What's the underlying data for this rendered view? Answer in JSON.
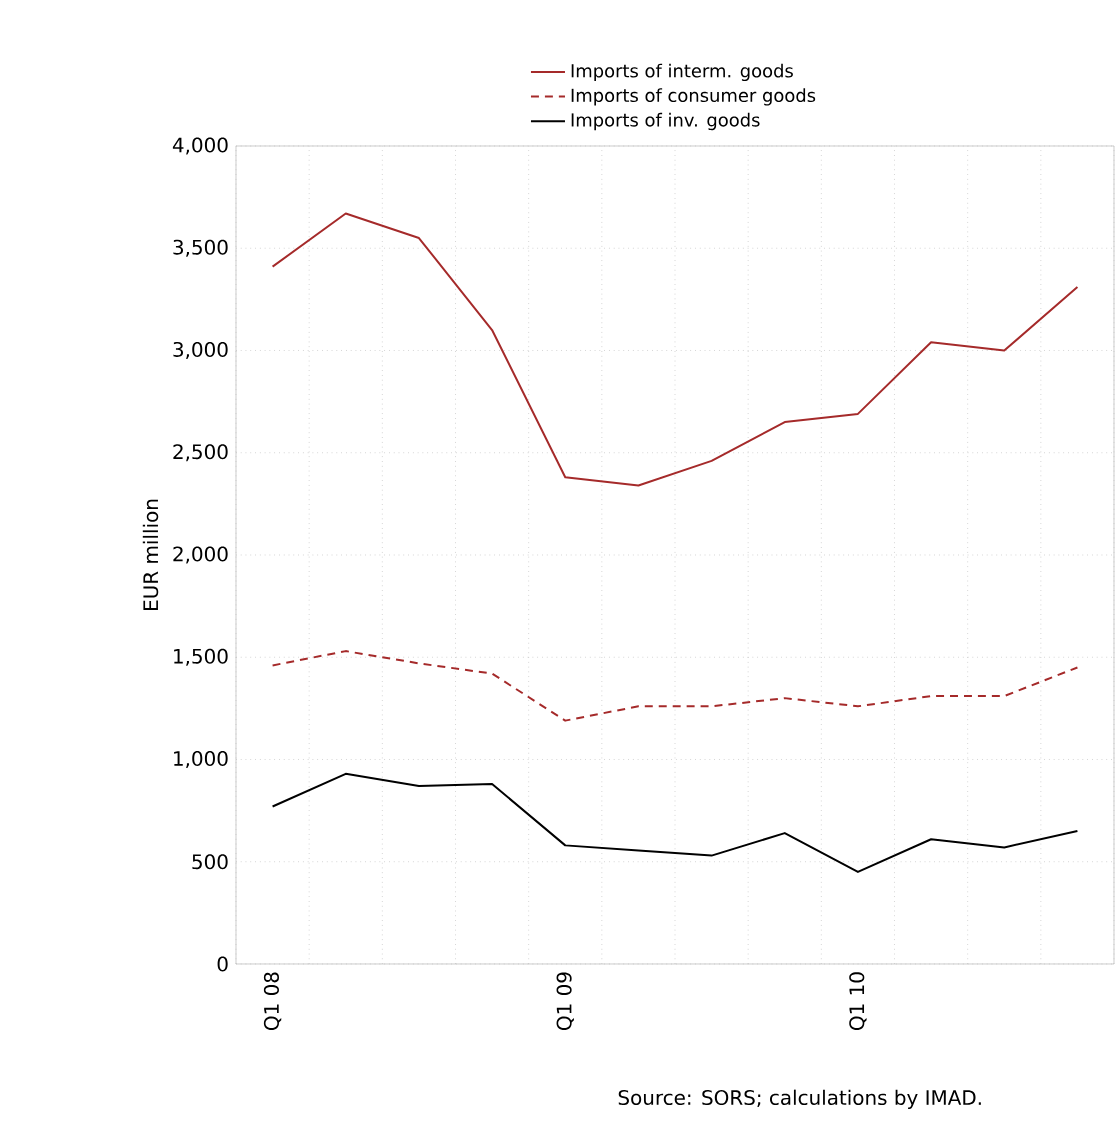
{
  "chart_data": {
    "type": "line",
    "categories": [
      "Q1 08",
      null,
      null,
      null,
      "Q1 09",
      null,
      null,
      null,
      "Q1 10",
      null,
      null,
      null
    ],
    "series": [
      {
        "name": "Imports of interm. goods",
        "color": "#a52a2a",
        "line_style": "solid",
        "values": [
          3410,
          3670,
          3550,
          3100,
          2380,
          2340,
          2460,
          2650,
          2690,
          3040,
          3000,
          3310
        ]
      },
      {
        "name": "Imports of consumer goods",
        "color": "#a52a2a",
        "line_style": "dashed",
        "values": [
          1460,
          1530,
          1470,
          1420,
          1190,
          1260,
          1260,
          1300,
          1260,
          1310,
          1310,
          1450
        ]
      },
      {
        "name": "Imports of inv. goods",
        "color": "#000000",
        "line_style": "solid",
        "values": [
          770,
          930,
          870,
          880,
          580,
          555,
          530,
          640,
          450,
          610,
          570,
          650
        ]
      }
    ],
    "ylabel": "EUR million",
    "ylim": [
      0,
      4000
    ],
    "yticks": [
      {
        "value": 0,
        "label": "0"
      },
      {
        "value": 500,
        "label": "500"
      },
      {
        "value": 1000,
        "label": "1,000"
      },
      {
        "value": 1500,
        "label": "1,500"
      },
      {
        "value": 2000,
        "label": "2,000"
      },
      {
        "value": 2500,
        "label": "2,500"
      },
      {
        "value": 3000,
        "label": "3,000"
      },
      {
        "value": 3500,
        "label": "3,500"
      },
      {
        "value": 4000,
        "label": "4,000"
      }
    ],
    "grid": true,
    "legend": "top",
    "marker": "none",
    "annotations": [
      "Source: SORS; calculations by IMAD."
    ]
  }
}
